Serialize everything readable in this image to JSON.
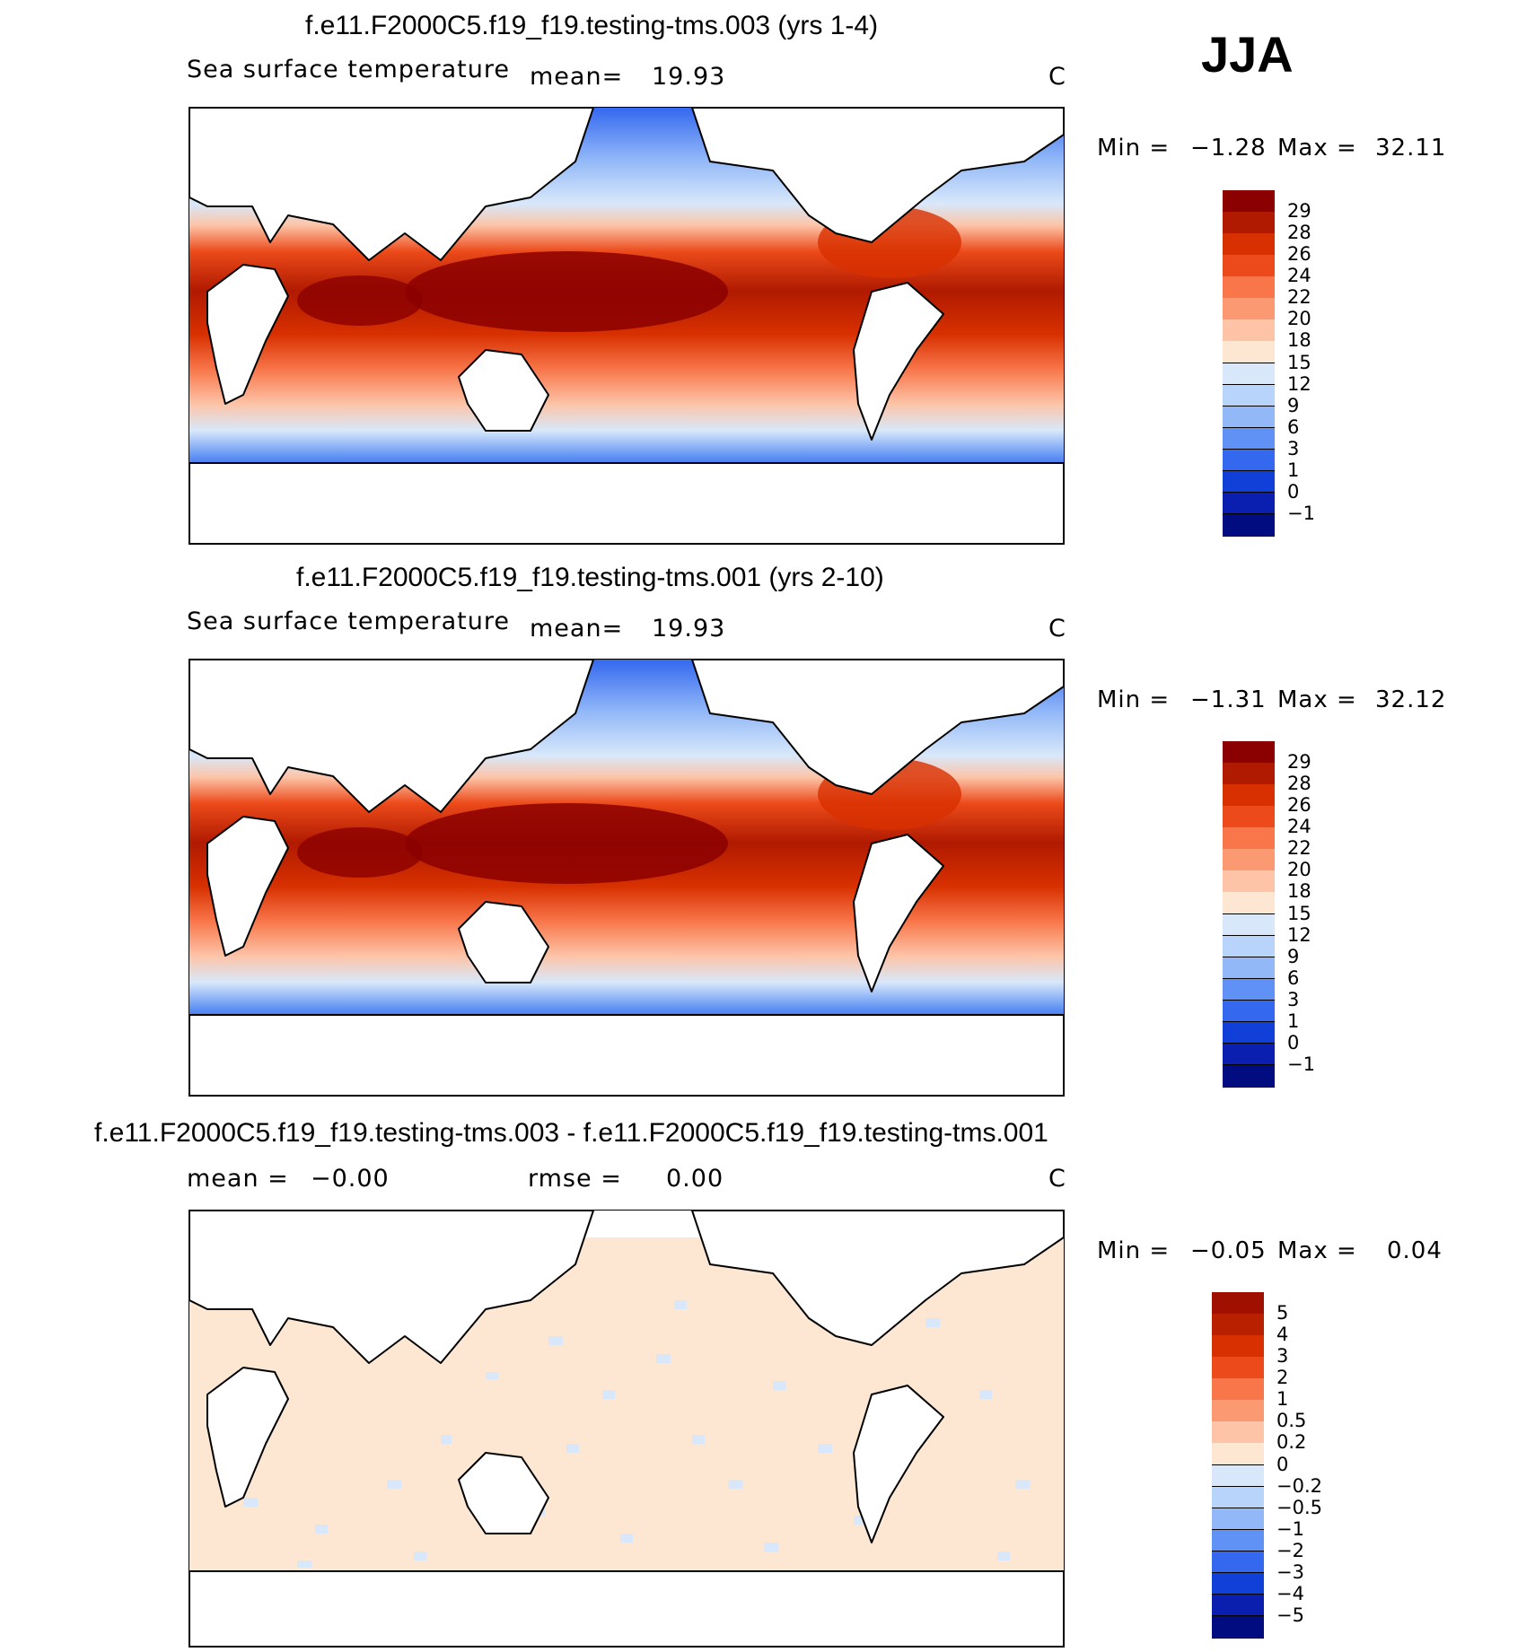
{
  "season": "JJA",
  "panels": [
    {
      "title": "f.e11.F2000C5.f19_f19.testing-tms.003 (yrs 1-4)",
      "left_label": "Sea surface temperature",
      "mean_label": "mean=",
      "mean_value": "19.93",
      "units": "C",
      "min_label": "Min =",
      "min_value": "−1.28",
      "max_label": "Max =",
      "max_value": "32.11",
      "colorbar": {
        "labels": [
          "29",
          "28",
          "26",
          "24",
          "22",
          "20",
          "18",
          "15",
          "12",
          "9",
          "6",
          "3",
          "1",
          "0",
          "−1"
        ],
        "colors": [
          "#8b0000",
          "#b01a00",
          "#d83000",
          "#ec4a1a",
          "#f8764a",
          "#fb9a72",
          "#fdc4a8",
          "#fde6d2",
          "#d8e8fa",
          "#b8d4fb",
          "#92b8f8",
          "#5f92f4",
          "#3468ef",
          "#1040d8",
          "#0a1fb0",
          "#000c80"
        ]
      }
    },
    {
      "title": "f.e11.F2000C5.f19_f19.testing-tms.001 (yrs 2-10)",
      "left_label": "Sea surface temperature",
      "mean_label": "mean=",
      "mean_value": "19.93",
      "units": "C",
      "min_label": "Min =",
      "min_value": "−1.31",
      "max_label": "Max =",
      "max_value": "32.12",
      "colorbar": {
        "labels": [
          "29",
          "28",
          "26",
          "24",
          "22",
          "20",
          "18",
          "15",
          "12",
          "9",
          "6",
          "3",
          "1",
          "0",
          "−1"
        ],
        "colors": [
          "#8b0000",
          "#b01a00",
          "#d83000",
          "#ec4a1a",
          "#f8764a",
          "#fb9a72",
          "#fdc4a8",
          "#fde6d2",
          "#d8e8fa",
          "#b8d4fb",
          "#92b8f8",
          "#5f92f4",
          "#3468ef",
          "#1040d8",
          "#0a1fb0",
          "#000c80"
        ]
      }
    },
    {
      "title": "f.e11.F2000C5.f19_f19.testing-tms.003 - f.e11.F2000C5.f19_f19.testing-tms.001",
      "mean_label": "mean =",
      "mean_value": "−0.00",
      "rmse_label": "rmse =",
      "rmse_value": "0.00",
      "units": "C",
      "min_label": "Min =",
      "min_value": "−0.05",
      "max_label": "Max =",
      "max_value": "0.04",
      "colorbar": {
        "labels": [
          "5",
          "4",
          "3",
          "2",
          "1",
          "0.5",
          "0.2",
          "0",
          "−0.2",
          "−0.5",
          "−1",
          "−2",
          "−3",
          "−4",
          "−5"
        ],
        "colors": [
          "#a01000",
          "#b82000",
          "#d83000",
          "#ec4a1a",
          "#f8764a",
          "#fb9a72",
          "#fdc4a8",
          "#fde6d2",
          "#d8e8fa",
          "#b8d4fb",
          "#92b8f8",
          "#5f92f4",
          "#3468ef",
          "#1040d8",
          "#0a1fb0",
          "#000c80"
        ]
      }
    }
  ]
}
